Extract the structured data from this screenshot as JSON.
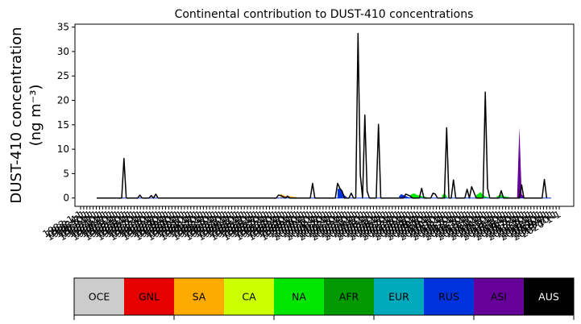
{
  "chart_data": {
    "type": "area",
    "title": "Continental contribution to DUST-410 concentrations",
    "ylabel": "DUST-410 concentration",
    "ylabel_unit": "(ng m⁻³)",
    "xlabel": "",
    "ylim": [
      -1.7,
      35.6
    ],
    "yticks": [
      0,
      5,
      10,
      15,
      20,
      25,
      30,
      35
    ],
    "grid": false,
    "legend_position": "bottom",
    "x": [
      0,
      1,
      2,
      3,
      4,
      5,
      6,
      7,
      8,
      9,
      10,
      11,
      12,
      13,
      14,
      15,
      16,
      17,
      18,
      19,
      20,
      21,
      22,
      23,
      24,
      25,
      26,
      27,
      28,
      29,
      30,
      31,
      32,
      33,
      34,
      35,
      36,
      37,
      38,
      39,
      40,
      41,
      42,
      43,
      44,
      45,
      46,
      47,
      48,
      49,
      50,
      51,
      52,
      53,
      54,
      55,
      56,
      57,
      58,
      59,
      60,
      61,
      62,
      63,
      64,
      65,
      66,
      67,
      68,
      69,
      70,
      71,
      72,
      73,
      74,
      75,
      76,
      77,
      78,
      79,
      80,
      81,
      82,
      83,
      84,
      85,
      86,
      87,
      88,
      89,
      90,
      91,
      92,
      93,
      94,
      95,
      96,
      97,
      98,
      99,
      100,
      101,
      102,
      103,
      104,
      105,
      106,
      107,
      108,
      109,
      110,
      111,
      112,
      113,
      114,
      115,
      116,
      117,
      118,
      119,
      120,
      121,
      122,
      123,
      124,
      125,
      126,
      127,
      128,
      129,
      130,
      131,
      132,
      133,
      134,
      135,
      136,
      137,
      138,
      139,
      140,
      141,
      142,
      143,
      144,
      145,
      146,
      147,
      148,
      149,
      150,
      151,
      152,
      153,
      154,
      155,
      156,
      157,
      158,
      159,
      160,
      161,
      162,
      163,
      164,
      165,
      166,
      167,
      168,
      169,
      170,
      171,
      172,
      173,
      174,
      175,
      176,
      177,
      178,
      179,
      180,
      181,
      182,
      183,
      184,
      185,
      186,
      187,
      188,
      189,
      190,
      191,
      192,
      193,
      194,
      195,
      196,
      197,
      198,
      199,
      200
    ],
    "total": [
      0,
      0,
      0,
      0,
      0,
      0,
      0,
      0,
      0,
      0,
      0,
      0,
      8.1,
      0,
      0,
      0,
      0,
      0,
      0,
      0.6,
      0,
      0,
      0,
      0,
      0.5,
      0,
      0.8,
      0,
      0,
      0,
      0,
      0,
      0,
      0,
      0,
      0,
      0,
      0,
      0,
      0,
      0,
      0,
      0,
      0,
      0,
      0,
      0,
      0,
      0,
      0,
      0,
      0,
      0,
      0,
      0,
      0,
      0,
      0,
      0,
      0,
      0,
      0,
      0,
      0,
      0,
      0,
      0,
      0,
      0,
      0,
      0,
      0,
      0,
      0,
      0,
      0,
      0,
      0,
      0,
      0,
      0.6,
      0.5,
      0.3,
      0,
      0.4,
      0,
      0,
      0,
      0,
      0,
      0,
      0,
      0,
      0,
      0,
      3.0,
      0,
      0,
      0,
      0,
      0,
      0,
      0,
      0,
      0,
      0,
      3.0,
      2.0,
      1.4,
      0,
      0,
      0,
      1.0,
      0,
      0,
      33.7,
      4.8,
      0,
      17.0,
      1.4,
      0,
      0,
      0,
      0,
      15.1,
      0,
      0,
      0,
      0,
      0,
      0,
      0,
      0,
      0,
      0,
      0,
      0.8,
      0.6,
      0.4,
      0,
      0,
      0,
      0,
      2.0,
      0,
      0,
      0,
      0,
      1.0,
      0.8,
      0,
      0,
      0,
      0,
      14.4,
      0,
      0,
      3.7,
      0,
      0,
      0,
      0,
      0,
      1.8,
      0,
      2.3,
      1.2,
      0,
      0,
      0,
      0,
      21.7,
      2.0,
      0,
      0,
      0,
      0,
      0,
      1.5,
      0,
      0,
      0,
      0,
      0,
      0,
      0,
      0,
      2.7,
      0,
      0,
      0,
      0,
      0,
      0,
      0,
      0,
      0,
      3.8,
      0
    ],
    "components": [
      {
        "idx": [
          81,
          82,
          83,
          84,
          85,
          86,
          87,
          88
        ],
        "sea": 2,
        "values": [
          0.9,
          0.6,
          0.4,
          0.3,
          0.4,
          0.3,
          0.2,
          0.2
        ]
      },
      {
        "idx": [
          106,
          107,
          108,
          109,
          110
        ],
        "sea": 7,
        "values": [
          1.8,
          2.0,
          1.4,
          0.6,
          0.2
        ]
      },
      {
        "idx": [
          138,
          139,
          140,
          141,
          142,
          143,
          144,
          145,
          146
        ],
        "sea": 4,
        "values": [
          0.6,
          0.9,
          0.9,
          0.6,
          0.5,
          0.4,
          0.3,
          0.2,
          0.1
        ]
      },
      {
        "idx": [
          152,
          153,
          154
        ],
        "sea": 4,
        "values": [
          0.5,
          1.0,
          0.4
        ]
      },
      {
        "idx": [
          167,
          168,
          169,
          170,
          171,
          172,
          173
        ],
        "sea": 4,
        "values": [
          0.6,
          0.9,
          1.2,
          0.6,
          0.3,
          0.2,
          0.1
        ]
      },
      {
        "idx": [
          176,
          177,
          178,
          179,
          180,
          181,
          182
        ],
        "sea": 4,
        "values": [
          0.3,
          0.5,
          0.7,
          0.4,
          0.3,
          0.2,
          0.1
        ]
      },
      {
        "idx": [
          185,
          186,
          187,
          188
        ],
        "sea": 8,
        "values": [
          0.2,
          14.5,
          0.8,
          0.2
        ]
      },
      {
        "idx": [
          133,
          134,
          135,
          136,
          137,
          138
        ],
        "sea": 7,
        "values": [
          0.3,
          0.8,
          0.6,
          0.4,
          0.2,
          0.1
        ]
      }
    ],
    "xtick_labels": [
      "1982-1-1",
      "1982-4-1",
      "1982-7-1",
      "1982-10-1",
      "1983-1-1",
      "1983-4-1",
      "1983-7-1",
      "1983-10-1",
      "1984-1-1",
      "1984-4-1",
      "1984-7-1",
      "1984-10-1",
      "1985-1-1",
      "1985-4-1",
      "1985-7-1",
      "1985-10-1",
      "1986-1-1",
      "1986-4-1",
      "1986-7-1",
      "1986-10-1",
      "1987-1-1",
      "1987-4-1",
      "1987-7-1",
      "1987-10-1",
      "1988-1-1",
      "1988-4-1",
      "1988-7-1",
      "1988-10-1",
      "1989-1-1",
      "1989-4-1",
      "1989-7-1",
      "1989-10-1",
      "1990-1-1",
      "1990-4-1",
      "1990-7-1",
      "1990-10-1",
      "1991-1-1",
      "1991-4-1",
      "1991-7-1",
      "1991-10-1",
      "1992-1-1",
      "1992-4-1",
      "1992-7-1",
      "1992-10-1",
      "1993-1-1",
      "1993-4-1",
      "1993-7-1",
      "1993-10-1",
      "1994-1-1",
      "1994-4-1",
      "1994-7-1",
      "1994-10-1",
      "1995-1-1",
      "1995-4-1",
      "1995-7-1",
      "1995-10-1",
      "1996-1-1",
      "1996-4-1",
      "1996-7-1",
      "1996-10-1",
      "1997-1-1",
      "1997-4-1",
      "1997-7-1",
      "1997-10-1",
      "1998-1-1",
      "1998-4-1",
      "1998-7-1",
      "1998-10-1",
      "1999-1-1",
      "1999-4-1",
      "1999-7-1",
      "1999-10-1",
      "2000-1-1",
      "2000-4-1",
      "2000-7-1",
      "2000-10-1",
      "2001-1-1",
      "2001-4-1",
      "2001-7-1",
      "2001-10-1",
      "2002-1-1",
      "2002-4-1",
      "2002-7-1",
      "2002-10-1",
      "2003-1-1",
      "2003-4-1",
      "2003-7-1",
      "2003-10-1",
      "2004-1-1",
      "2004-4-1",
      "2004-7-1",
      "2004-10-1",
      "2005-1-1",
      "2005-4-1",
      "2005-7-1",
      "2005-10-1",
      "2006-1-1",
      "2006-4-1",
      "2006-7-1",
      "2006-10-1",
      "2007-1-1",
      "2007-4-1",
      "2007-7-1",
      "2007-10-1",
      "2008-1-1",
      "2008-4-1",
      "2008-7-1",
      "2008-10-1",
      "2009-1-1",
      "2009-4-1",
      "2009-7-1",
      "2009-10-1",
      "2010-1-1",
      "2010-4-1",
      "2010-7-1",
      "2010-10-1",
      "2011-1-1",
      "2011-4-1",
      "2011-7-1",
      "2011-10-1",
      "2012-1-1",
      "2012-4-1",
      "2012-7-1",
      "2012-10-1",
      "2013-1-1",
      "2013-4-1",
      "2013-7-1",
      "2013-10-1",
      "2014-1-1",
      "2014-4-1",
      "2014-7-1",
      "2014-10-1",
      "2015-1-1",
      "2015-4-1",
      "2015-7-1",
      "2015-10-1",
      "2016-1-1",
      "2016-4-1",
      "2016-7-1",
      "2016-10-1",
      "2017-1-1",
      "2017-4-1",
      "2017-7-1",
      "2017-10-1",
      "2018-1-1",
      "2018-4-1",
      "2018-7-1",
      "2018-10-1",
      "2019-1-1",
      "2019-4-1",
      "2019-7-1",
      "2019-10-1",
      "2020-1-1"
    ],
    "legend": [
      {
        "label": "OCE",
        "color": "#cccccc",
        "text_color": "#000000"
      },
      {
        "label": "GNL",
        "color": "#e60000",
        "text_color": "#000000"
      },
      {
        "label": "SA",
        "color": "#ffaa00",
        "text_color": "#000000"
      },
      {
        "label": "CA",
        "color": "#ccff00",
        "text_color": "#000000"
      },
      {
        "label": "NA",
        "color": "#00e600",
        "text_color": "#000000"
      },
      {
        "label": "AFR",
        "color": "#009900",
        "text_color": "#000000"
      },
      {
        "label": "EUR",
        "color": "#00aabb",
        "text_color": "#000000"
      },
      {
        "label": "RUS",
        "color": "#0033dd",
        "text_color": "#000000"
      },
      {
        "label": "ASI",
        "color": "#660099",
        "text_color": "#000000"
      },
      {
        "label": "AUS",
        "color": "#000000",
        "text_color": "#ffffff"
      }
    ],
    "line_color": "#000000"
  }
}
